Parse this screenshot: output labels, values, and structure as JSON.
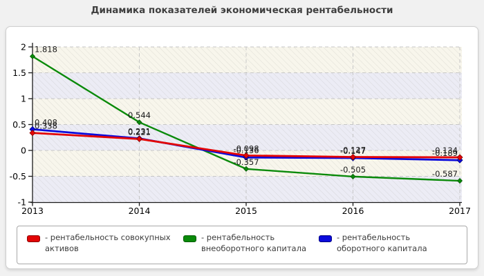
{
  "page": {
    "title": "Динамика показателей экономическая рентабельности"
  },
  "chart_data": {
    "type": "line",
    "title": "Динамика показателей экономическая рентабельности",
    "x_labels": [
      "2013",
      "2014",
      "2015",
      "2016",
      "2017"
    ],
    "ylim": [
      -1,
      2
    ],
    "yticks": [
      2,
      1.5,
      1,
      0.5,
      0,
      -0.5,
      -1
    ],
    "ytick_labels": [
      "2",
      "1.5",
      "1",
      "0.5",
      "0",
      "-0.5",
      "-1"
    ],
    "grid": true,
    "legend_position": "bottom",
    "plot_band_colors": [
      "#f8f6ec",
      "#ececf5"
    ],
    "grid_color": "#c6c6c6",
    "axis_color": "#1a1a1a",
    "data_label_color": "#1b1b1b",
    "series": [
      {
        "name": "рентабельность внеоборотного капитала",
        "color": "#0a8a0a",
        "marker_edge": "#065c06",
        "values": [
          1.818,
          0.544,
          -0.357,
          -0.505,
          -0.587
        ],
        "labels": [
          "1.818",
          "0.544",
          "-0.357",
          "-0.505",
          "-0.587"
        ]
      },
      {
        "name": "рентабельность оборотного капитала",
        "color": "#0b0bdc",
        "marker_edge": "#000080",
        "values": [
          0.408,
          0.231,
          -0.136,
          -0.147,
          -0.189
        ],
        "labels": [
          "0.408",
          "0.231",
          "-0.136",
          "-0.147",
          "-0.189"
        ]
      },
      {
        "name": "рентабельность совокупных активов",
        "color": "#e30505",
        "marker_edge": "#8b0000",
        "values": [
          0.338,
          0.221,
          -0.098,
          -0.127,
          -0.134
        ],
        "labels": [
          "0.338",
          "0.221",
          "-0.098",
          "-0.127",
          "-0.134"
        ]
      }
    ]
  },
  "legend": {
    "items": [
      {
        "label": "- рентабельность совокупных активов",
        "color": "#e30505",
        "border": "#8b0000"
      },
      {
        "label": "- рентабельность внеоборотного капитала",
        "color": "#0a8a0a",
        "border": "#065c06"
      },
      {
        "label": "- рентабельность оборотного капитала",
        "color": "#0b0bdc",
        "border": "#000080"
      }
    ]
  }
}
